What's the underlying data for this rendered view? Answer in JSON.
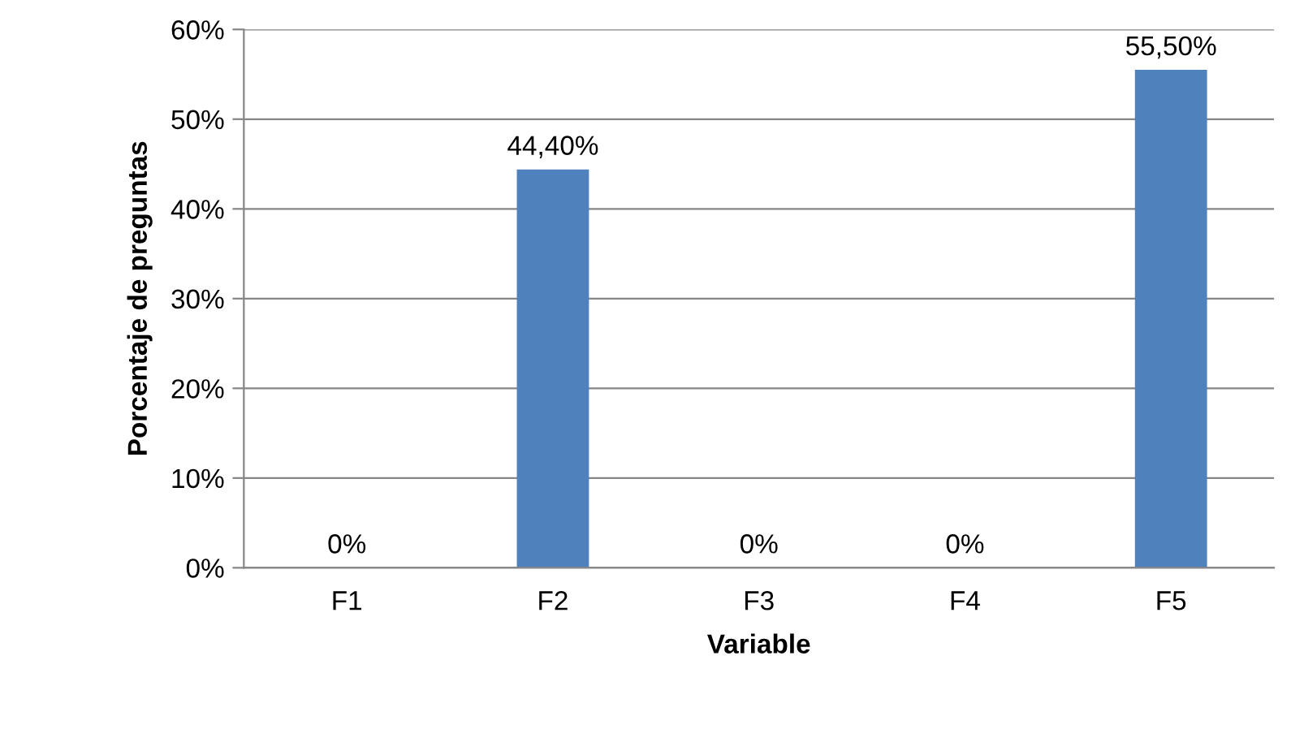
{
  "chart_data": {
    "type": "bar",
    "xlabel": "Variable",
    "ylabel": "Porcentaje de preguntas",
    "categories": [
      "F1",
      "F2",
      "F3",
      "F4",
      "F5"
    ],
    "values": [
      0,
      44.4,
      0,
      0,
      55.5
    ],
    "value_labels": [
      "0%",
      "44,40%",
      "0%",
      "0%",
      "55,50%"
    ],
    "color": "#4f81bd",
    "ylim": [
      0,
      60
    ],
    "yticks": [
      {
        "value": 0,
        "label": "0%"
      },
      {
        "value": 10,
        "label": "10%"
      },
      {
        "value": 20,
        "label": "20%"
      },
      {
        "value": 30,
        "label": "30%"
      },
      {
        "value": 40,
        "label": "40%"
      },
      {
        "value": 50,
        "label": "50%"
      },
      {
        "value": 60,
        "label": "60%"
      }
    ],
    "grid": "y"
  }
}
